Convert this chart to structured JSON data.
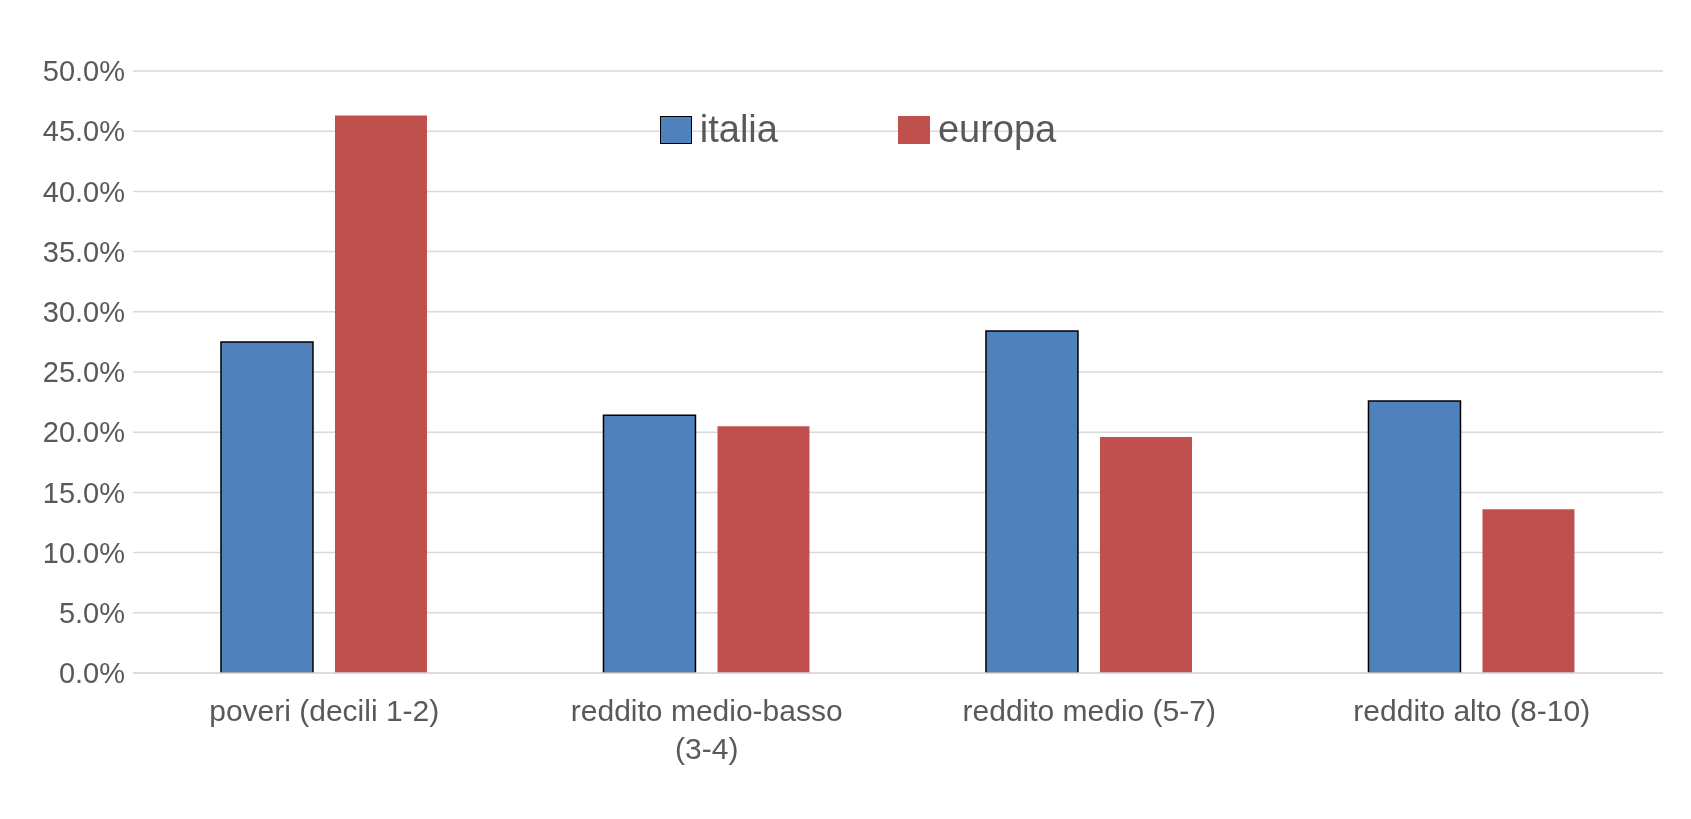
{
  "chart_data": {
    "type": "bar",
    "categories": [
      "poveri (decili 1-2)",
      "reddito medio-basso (3-4)",
      "reddito medio (5-7)",
      "reddito alto (8-10)"
    ],
    "series": [
      {
        "name": "italia",
        "color": "#4f81bd",
        "values": [
          27.5,
          21.4,
          28.4,
          22.6
        ]
      },
      {
        "name": "europa",
        "color": "#c0504d",
        "values": [
          46.3,
          20.5,
          19.6,
          13.6
        ]
      }
    ],
    "ylim": [
      0,
      50
    ],
    "yticks": [
      {
        "value": 0,
        "label": "0.0%"
      },
      {
        "value": 5,
        "label": "5.0%"
      },
      {
        "value": 10,
        "label": "10.0%"
      },
      {
        "value": 15,
        "label": "15.0%"
      },
      {
        "value": 20,
        "label": "20.0%"
      },
      {
        "value": 25,
        "label": "25.0%"
      },
      {
        "value": 30,
        "label": "30.0%"
      },
      {
        "value": 35,
        "label": "35.0%"
      },
      {
        "value": 40,
        "label": "40.0%"
      },
      {
        "value": 45,
        "label": "45.0%"
      },
      {
        "value": 50,
        "label": "50.0%"
      }
    ],
    "grid": "y",
    "legend": "top"
  }
}
